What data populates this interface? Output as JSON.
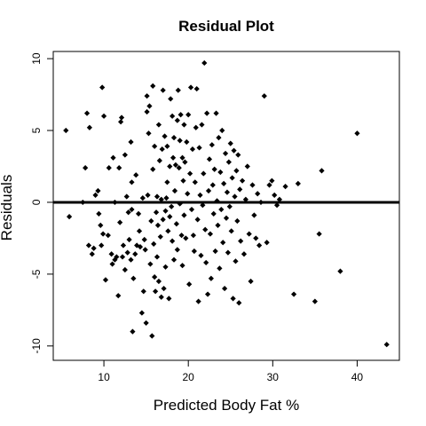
{
  "chart_data": {
    "type": "scatter",
    "title": "Residual Plot",
    "xlabel": "Predicted Body Fat %",
    "ylabel": "Residuals",
    "xlim": [
      4,
      45
    ],
    "ylim": [
      -11,
      10.5
    ],
    "xticks": [
      "10",
      "20",
      "30",
      "40"
    ],
    "xtick_values": [
      10,
      20,
      30,
      40
    ],
    "yticks": [
      "-10",
      "-5",
      "0",
      "5",
      "10"
    ],
    "ytick_values": [
      -10,
      -5,
      0,
      5,
      10
    ],
    "reference_line_y": 0,
    "grid": false,
    "points": [
      [
        5.5,
        5.0
      ],
      [
        5.9,
        -1.0
      ],
      [
        7.5,
        0.0
      ],
      [
        7.8,
        2.4
      ],
      [
        8.0,
        6.2
      ],
      [
        8.2,
        -3.0
      ],
      [
        8.3,
        5.2
      ],
      [
        8.6,
        -3.6
      ],
      [
        8.8,
        -3.2
      ],
      [
        9.0,
        0.5
      ],
      [
        9.3,
        0.8
      ],
      [
        9.4,
        -0.8
      ],
      [
        9.6,
        -1.6
      ],
      [
        9.7,
        -3.0
      ],
      [
        9.8,
        8.0
      ],
      [
        9.9,
        -2.2
      ],
      [
        10.0,
        6.0
      ],
      [
        10.2,
        -5.4
      ],
      [
        10.5,
        -2.3
      ],
      [
        10.6,
        2.4
      ],
      [
        10.9,
        -3.6
      ],
      [
        11.0,
        -4.3
      ],
      [
        11.1,
        3.1
      ],
      [
        11.3,
        -4.0
      ],
      [
        11.3,
        0.0
      ],
      [
        11.5,
        -3.8
      ],
      [
        11.7,
        -6.5
      ],
      [
        11.8,
        2.4
      ],
      [
        11.9,
        -1.4
      ],
      [
        12.0,
        5.6
      ],
      [
        12.1,
        5.9
      ],
      [
        12.2,
        -3.8
      ],
      [
        12.3,
        -3.0
      ],
      [
        12.5,
        -4.7
      ],
      [
        12.5,
        3.3
      ],
      [
        12.7,
        0.4
      ],
      [
        12.8,
        -3.5
      ],
      [
        12.9,
        -0.7
      ],
      [
        13.0,
        -2.6
      ],
      [
        13.2,
        -4.0
      ],
      [
        13.2,
        4.2
      ],
      [
        13.3,
        1.4
      ],
      [
        13.3,
        -0.5
      ],
      [
        13.4,
        -9.0
      ],
      [
        13.5,
        -5.3
      ],
      [
        13.7,
        -3.6
      ],
      [
        13.8,
        1.9
      ],
      [
        13.9,
        -3.0
      ],
      [
        14.1,
        -0.8
      ],
      [
        14.2,
        -2.0
      ],
      [
        14.3,
        -3.1
      ],
      [
        14.5,
        -7.7
      ],
      [
        14.6,
        0.3
      ],
      [
        14.7,
        -6.2
      ],
      [
        14.8,
        -2.6
      ],
      [
        14.9,
        -3.3
      ],
      [
        15.0,
        -8.4
      ],
      [
        15.1,
        6.3
      ],
      [
        15.1,
        7.4
      ],
      [
        15.2,
        0.5
      ],
      [
        15.3,
        4.8
      ],
      [
        15.4,
        6.7
      ],
      [
        15.5,
        -4.3
      ],
      [
        15.6,
        -1.3
      ],
      [
        15.7,
        -9.3
      ],
      [
        15.8,
        2.3
      ],
      [
        15.8,
        8.1
      ],
      [
        15.9,
        -2.9
      ],
      [
        16.0,
        3.9
      ],
      [
        16.0,
        -5.2
      ],
      [
        16.1,
        -6.2
      ],
      [
        16.2,
        -0.7
      ],
      [
        16.3,
        0.4
      ],
      [
        16.3,
        -3.8
      ],
      [
        16.4,
        -1.6
      ],
      [
        16.5,
        5.4
      ],
      [
        16.5,
        -5.5
      ],
      [
        16.6,
        2.9
      ],
      [
        16.7,
        -2.4
      ],
      [
        16.8,
        -6.6
      ],
      [
        16.8,
        0.2
      ],
      [
        16.9,
        3.7
      ],
      [
        17.0,
        -1.2
      ],
      [
        17.0,
        7.8
      ],
      [
        17.1,
        -6.0
      ],
      [
        17.2,
        4.6
      ],
      [
        17.3,
        -0.6
      ],
      [
        17.3,
        -4.5
      ],
      [
        17.4,
        0.3
      ],
      [
        17.5,
        3.9
      ],
      [
        17.5,
        1.4
      ],
      [
        17.6,
        -2.0
      ],
      [
        17.7,
        -6.7
      ],
      [
        17.8,
        2.5
      ],
      [
        17.8,
        -1.0
      ],
      [
        17.9,
        7.2
      ],
      [
        18.0,
        -0.3
      ],
      [
        18.1,
        6.0
      ],
      [
        18.1,
        -2.7
      ],
      [
        18.2,
        3.1
      ],
      [
        18.3,
        4.5
      ],
      [
        18.3,
        -4.0
      ],
      [
        18.4,
        0.8
      ],
      [
        18.5,
        2.6
      ],
      [
        18.6,
        -1.5
      ],
      [
        18.7,
        5.7
      ],
      [
        18.7,
        -3.3
      ],
      [
        18.8,
        7.8
      ],
      [
        18.9,
        2.4
      ],
      [
        19.0,
        -0.1
      ],
      [
        19.0,
        4.3
      ],
      [
        19.1,
        6.1
      ],
      [
        19.2,
        -2.3
      ],
      [
        19.3,
        3.1
      ],
      [
        19.3,
        -4.4
      ],
      [
        19.4,
        1.5
      ],
      [
        19.5,
        5.4
      ],
      [
        19.5,
        -0.9
      ],
      [
        19.6,
        2.8
      ],
      [
        19.7,
        -2.5
      ],
      [
        19.8,
        4.2
      ],
      [
        19.9,
        0.6
      ],
      [
        20.0,
        6.1
      ],
      [
        20.1,
        -5.7
      ],
      [
        20.2,
        2.0
      ],
      [
        20.3,
        8.0
      ],
      [
        20.4,
        -0.5
      ],
      [
        20.5,
        3.7
      ],
      [
        20.6,
        -2.3
      ],
      [
        20.7,
        -3.4
      ],
      [
        20.8,
        1.4
      ],
      [
        20.9,
        5.2
      ],
      [
        21.0,
        7.9
      ],
      [
        21.1,
        -1.2
      ],
      [
        21.2,
        -6.9
      ],
      [
        21.3,
        3.8
      ],
      [
        21.4,
        0.5
      ],
      [
        21.5,
        -3.7
      ],
      [
        21.6,
        5.4
      ],
      [
        21.7,
        -0.2
      ],
      [
        21.8,
        2.0
      ],
      [
        21.9,
        9.7
      ],
      [
        22.0,
        -1.9
      ],
      [
        22.1,
        -4.2
      ],
      [
        22.2,
        6.2
      ],
      [
        22.3,
        -6.4
      ],
      [
        22.4,
        0.8
      ],
      [
        22.5,
        3.0
      ],
      [
        22.6,
        -2.2
      ],
      [
        22.7,
        -5.3
      ],
      [
        22.8,
        4.0
      ],
      [
        22.9,
        1.2
      ],
      [
        23.0,
        -0.8
      ],
      [
        23.1,
        2.3
      ],
      [
        23.2,
        -3.4
      ],
      [
        23.3,
        6.2
      ],
      [
        23.4,
        0.1
      ],
      [
        23.5,
        -1.6
      ],
      [
        23.6,
        4.5
      ],
      [
        23.7,
        -4.6
      ],
      [
        23.8,
        2.1
      ],
      [
        23.9,
        -0.5
      ],
      [
        24.0,
        5.0
      ],
      [
        24.1,
        -2.8
      ],
      [
        24.2,
        1.3
      ],
      [
        24.3,
        -6.0
      ],
      [
        24.4,
        3.4
      ],
      [
        24.5,
        -1.1
      ],
      [
        24.6,
        0.7
      ],
      [
        24.7,
        -3.5
      ],
      [
        24.8,
        2.8
      ],
      [
        24.9,
        -0.3
      ],
      [
        25.0,
        4.1
      ],
      [
        25.1,
        -2.0
      ],
      [
        25.2,
        1.7
      ],
      [
        25.3,
        -6.7
      ],
      [
        25.4,
        3.6
      ],
      [
        25.5,
        0.4
      ],
      [
        25.6,
        -4.1
      ],
      [
        25.7,
        2.2
      ],
      [
        25.8,
        -1.3
      ],
      [
        25.9,
        3.3
      ],
      [
        26.0,
        -7.0
      ],
      [
        26.1,
        0.9
      ],
      [
        26.2,
        -2.7
      ],
      [
        26.4,
        1.5
      ],
      [
        26.6,
        -3.6
      ],
      [
        26.8,
        0.2
      ],
      [
        27.0,
        2.5
      ],
      [
        27.2,
        -2.2
      ],
      [
        27.4,
        -5.5
      ],
      [
        27.6,
        1.2
      ],
      [
        27.8,
        -0.9
      ],
      [
        28.0,
        -2.5
      ],
      [
        28.2,
        0.6
      ],
      [
        28.4,
        -3.0
      ],
      [
        28.6,
        0.0
      ],
      [
        29.0,
        7.4
      ],
      [
        29.3,
        -2.8
      ],
      [
        29.6,
        1.2
      ],
      [
        29.9,
        1.5
      ],
      [
        30.2,
        0.5
      ],
      [
        30.5,
        -0.2
      ],
      [
        30.8,
        0.2
      ],
      [
        31.5,
        1.1
      ],
      [
        32.5,
        -6.4
      ],
      [
        33.0,
        1.3
      ],
      [
        35.0,
        -6.9
      ],
      [
        35.5,
        -2.2
      ],
      [
        35.8,
        2.2
      ],
      [
        38.0,
        -4.8
      ],
      [
        40.0,
        4.8
      ],
      [
        43.5,
        -9.9
      ]
    ]
  }
}
